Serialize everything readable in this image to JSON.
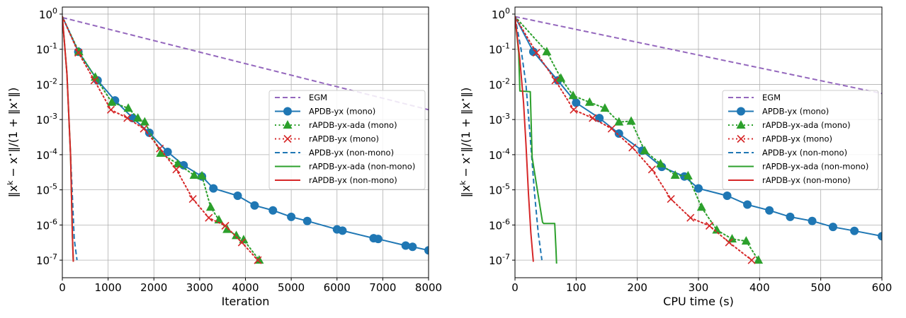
{
  "chart_data": [
    {
      "type": "line",
      "xlabel": "Iteration",
      "ylabel": "‖x^k − x^⋆‖/(1 + ‖x^⋆‖)",
      "xlim": [
        0,
        8000
      ],
      "ylim_log10": [
        -7.5,
        0.2
      ],
      "y_scale": "log",
      "grid": true,
      "legend_position": "right",
      "x_ticks": [
        "0",
        "1000",
        "2000",
        "3000",
        "4000",
        "5000",
        "6000",
        "7000",
        "8000"
      ],
      "y_ticks": [
        {
          "base": "10",
          "exp": "-7"
        },
        {
          "base": "10",
          "exp": "-6"
        },
        {
          "base": "10",
          "exp": "-5"
        },
        {
          "base": "10",
          "exp": "-4"
        },
        {
          "base": "10",
          "exp": "-3"
        },
        {
          "base": "10",
          "exp": "-2"
        },
        {
          "base": "10",
          "exp": "-1"
        },
        {
          "base": "10",
          "exp": "0"
        }
      ],
      "series": [
        {
          "name": "EGM",
          "color": "#9467bd",
          "dash": "dashed",
          "marker": "none",
          "x": [
            0,
            8000
          ],
          "y": [
            0.8,
            0.0019
          ]
        },
        {
          "name": "APDB-yx (mono)",
          "color": "#1f77b4",
          "dash": "solid",
          "marker": "circle",
          "x": [
            0,
            350,
            770,
            1150,
            1540,
            1900,
            2300,
            2650,
            3050,
            3300,
            3830,
            4200,
            4600,
            5000,
            5350,
            6000,
            6120,
            6800,
            6900,
            7500,
            7650,
            8000
          ],
          "y": [
            0.85,
            0.085,
            0.013,
            0.0035,
            0.0011,
            0.00042,
            0.00012,
            5e-05,
            2.4e-05,
            1.1e-05,
            6.8e-06,
            3.6e-06,
            2.6e-06,
            1.7e-06,
            1.3e-06,
            7.5e-07,
            6.9e-07,
            4.2e-07,
            4e-07,
            2.6e-07,
            2.4e-07,
            1.9e-07
          ]
        },
        {
          "name": "rAPDB-yx-ada (mono)",
          "color": "#2ca02c",
          "dash": "dotted",
          "marker": "triangle",
          "x": [
            0,
            360,
            720,
            1080,
            1440,
            1650,
            1800,
            2150,
            2520,
            2880,
            3050,
            3240,
            3420,
            3600,
            3800,
            3960,
            4300
          ],
          "y": [
            0.85,
            0.085,
            0.016,
            0.0031,
            0.0021,
            0.0011,
            0.00085,
            0.00011,
            5.5e-05,
            2.6e-05,
            2.5e-05,
            3.2e-06,
            1.4e-06,
            7.5e-07,
            5e-07,
            3.8e-07,
            1e-07
          ]
        },
        {
          "name": "rAPDB-yx (mono)",
          "color": "#d62728",
          "dash": "dotted",
          "marker": "x",
          "x": [
            0,
            350,
            700,
            1060,
            1420,
            1780,
            2130,
            2490,
            2850,
            3200,
            3560,
            3920,
            4270
          ],
          "y": [
            0.85,
            0.08,
            0.013,
            0.0019,
            0.0011,
            0.00055,
            0.00015,
            3.8e-05,
            5.5e-06,
            1.6e-06,
            9.5e-07,
            3.2e-07,
            1e-07
          ]
        },
        {
          "name": "APDB-yx (non-mono)",
          "color": "#1f77b4",
          "dash": "dashed",
          "marker": "none",
          "x": [
            0,
            100,
            180,
            260,
            320
          ],
          "y": [
            0.85,
            0.02,
            0.0001,
            4e-07,
            1e-07
          ]
        },
        {
          "name": "rAPDB-yx-ada (non-mono)",
          "color": "#2ca02c",
          "dash": "solid",
          "marker": "none",
          "x": [
            0,
            100,
            180,
            220,
            240
          ],
          "y": [
            0.85,
            0.02,
            0.0001,
            5e-07,
            9e-08
          ]
        },
        {
          "name": "rAPDB-yx (non-mono)",
          "color": "#d62728",
          "dash": "solid",
          "marker": "none",
          "x": [
            0,
            100,
            180,
            220,
            240
          ],
          "y": [
            0.85,
            0.02,
            0.0001,
            5e-07,
            9e-08
          ]
        }
      ]
    },
    {
      "type": "line",
      "xlabel": "CPU time (s)",
      "ylabel": "‖x^k − x^⋆‖/(1 + ‖x^⋆‖)",
      "xlim": [
        0,
        600
      ],
      "ylim_log10": [
        -7.5,
        0.2
      ],
      "y_scale": "log",
      "grid": true,
      "legend_position": "right",
      "x_ticks": [
        "0",
        "100",
        "200",
        "300",
        "400",
        "500",
        "600"
      ],
      "y_ticks": [
        {
          "base": "10",
          "exp": "-7"
        },
        {
          "base": "10",
          "exp": "-6"
        },
        {
          "base": "10",
          "exp": "-5"
        },
        {
          "base": "10",
          "exp": "-4"
        },
        {
          "base": "10",
          "exp": "-3"
        },
        {
          "base": "10",
          "exp": "-2"
        },
        {
          "base": "10",
          "exp": "-1"
        },
        {
          "base": "10",
          "exp": "0"
        }
      ],
      "series": [
        {
          "name": "EGM",
          "color": "#9467bd",
          "dash": "dashed",
          "marker": "none",
          "x": [
            0,
            600
          ],
          "y": [
            0.85,
            0.0055
          ]
        },
        {
          "name": "APDB-yx (mono)",
          "color": "#1f77b4",
          "dash": "solid",
          "marker": "circle",
          "x": [
            0,
            30,
            70,
            100,
            138,
            170,
            208,
            240,
            277,
            300,
            347,
            380,
            416,
            450,
            486,
            520,
            555,
            600
          ],
          "y": [
            0.85,
            0.085,
            0.013,
            0.003,
            0.0011,
            0.0004,
            0.00013,
            4.5e-05,
            2.4e-05,
            1.1e-05,
            6.8e-06,
            3.8e-06,
            2.6e-06,
            1.7e-06,
            1.3e-06,
            8.8e-07,
            6.8e-07,
            4.8e-07
          ]
        },
        {
          "name": "rAPDB-yx-ada (mono)",
          "color": "#2ca02c",
          "dash": "dotted",
          "marker": "triangle",
          "x": [
            0,
            52,
            75,
            95,
            122,
            147,
            170,
            190,
            212,
            238,
            262,
            283,
            305,
            330,
            355,
            378,
            398
          ],
          "y": [
            0.85,
            0.085,
            0.015,
            0.0048,
            0.0031,
            0.0021,
            0.00085,
            0.0009,
            0.00013,
            5.5e-05,
            2.6e-05,
            2.5e-05,
            3.2e-06,
            7.2e-07,
            4e-07,
            3.5e-07,
            1e-07
          ]
        },
        {
          "name": "rAPDB-yx (mono)",
          "color": "#d62728",
          "dash": "dotted",
          "marker": "x",
          "x": [
            0,
            35,
            66,
            96,
            127,
            158,
            192,
            224,
            255,
            287,
            318,
            350,
            387
          ],
          "y": [
            0.85,
            0.08,
            0.013,
            0.0019,
            0.0011,
            0.00055,
            0.00016,
            3.8e-05,
            5.5e-06,
            1.6e-06,
            9.5e-07,
            3.2e-07,
            1e-07
          ]
        },
        {
          "name": "APDB-yx (non-mono)",
          "color": "#1f77b4",
          "dash": "dashed",
          "marker": "none",
          "x": [
            0,
            10,
            18,
            25,
            32,
            38,
            44
          ],
          "y": [
            0.85,
            0.1,
            0.01,
            0.0003,
            8e-06,
            6e-07,
            1e-07
          ]
        },
        {
          "name": "rAPDB-yx-ada (non-mono)",
          "color": "#2ca02c",
          "dash": "solid",
          "marker": "none",
          "x": [
            0,
            6,
            8,
            25,
            28,
            38,
            45,
            47,
            65,
            67,
            68
          ],
          "y": [
            0.85,
            0.08,
            0.0065,
            0.0062,
            8.5e-05,
            7e-06,
            1.2e-06,
            1.1e-06,
            1.1e-06,
            2.2e-07,
            8e-08
          ]
        },
        {
          "name": "rAPDB-yx (non-mono)",
          "color": "#d62728",
          "dash": "solid",
          "marker": "none",
          "x": [
            0,
            8,
            14,
            18,
            22,
            26,
            30
          ],
          "y": [
            0.85,
            0.05,
            0.003,
            0.0002,
            8e-06,
            6e-07,
            9e-08
          ]
        }
      ]
    }
  ]
}
